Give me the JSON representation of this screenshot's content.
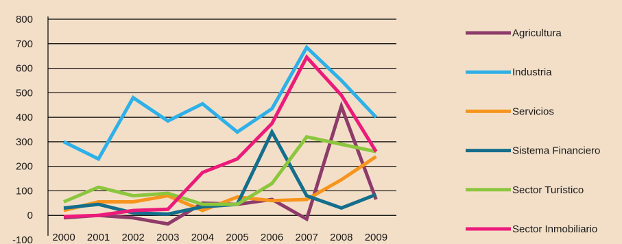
{
  "chart_data": {
    "type": "line",
    "title": "",
    "xlabel": "",
    "ylabel": "",
    "categories": [
      "2000",
      "2001",
      "2002",
      "2003",
      "2004",
      "2005",
      "2006",
      "2007",
      "2008",
      "2009"
    ],
    "ylim": [
      -100,
      800
    ],
    "yticks": [
      -100,
      0,
      100,
      200,
      300,
      400,
      500,
      600,
      700,
      800
    ],
    "grid": true,
    "legend_position": "right",
    "series": [
      {
        "name": "Agricultura",
        "color": "#8e3b6a",
        "values": [
          -10,
          0,
          -10,
          -35,
          50,
          45,
          65,
          -15,
          445,
          65
        ]
      },
      {
        "name": "Industria",
        "color": "#2eb0e8",
        "values": [
          300,
          230,
          480,
          385,
          455,
          340,
          435,
          685,
          550,
          400
        ]
      },
      {
        "name": "Servicios",
        "color": "#f7941d",
        "values": [
          20,
          55,
          55,
          80,
          20,
          75,
          60,
          65,
          145,
          240
        ]
      },
      {
        "name": "Sistema Financiero",
        "color": "#146e8c",
        "values": [
          30,
          45,
          10,
          5,
          35,
          45,
          340,
          80,
          30,
          85
        ]
      },
      {
        "name": "Sector Turístico",
        "color": "#8cc63f",
        "values": [
          55,
          115,
          80,
          90,
          45,
          45,
          130,
          320,
          290,
          260
        ]
      },
      {
        "name": "Sector Inmobiliario",
        "color": "#ec1b7a",
        "values": [
          -5,
          0,
          20,
          25,
          175,
          230,
          375,
          645,
          490,
          260
        ]
      }
    ]
  }
}
